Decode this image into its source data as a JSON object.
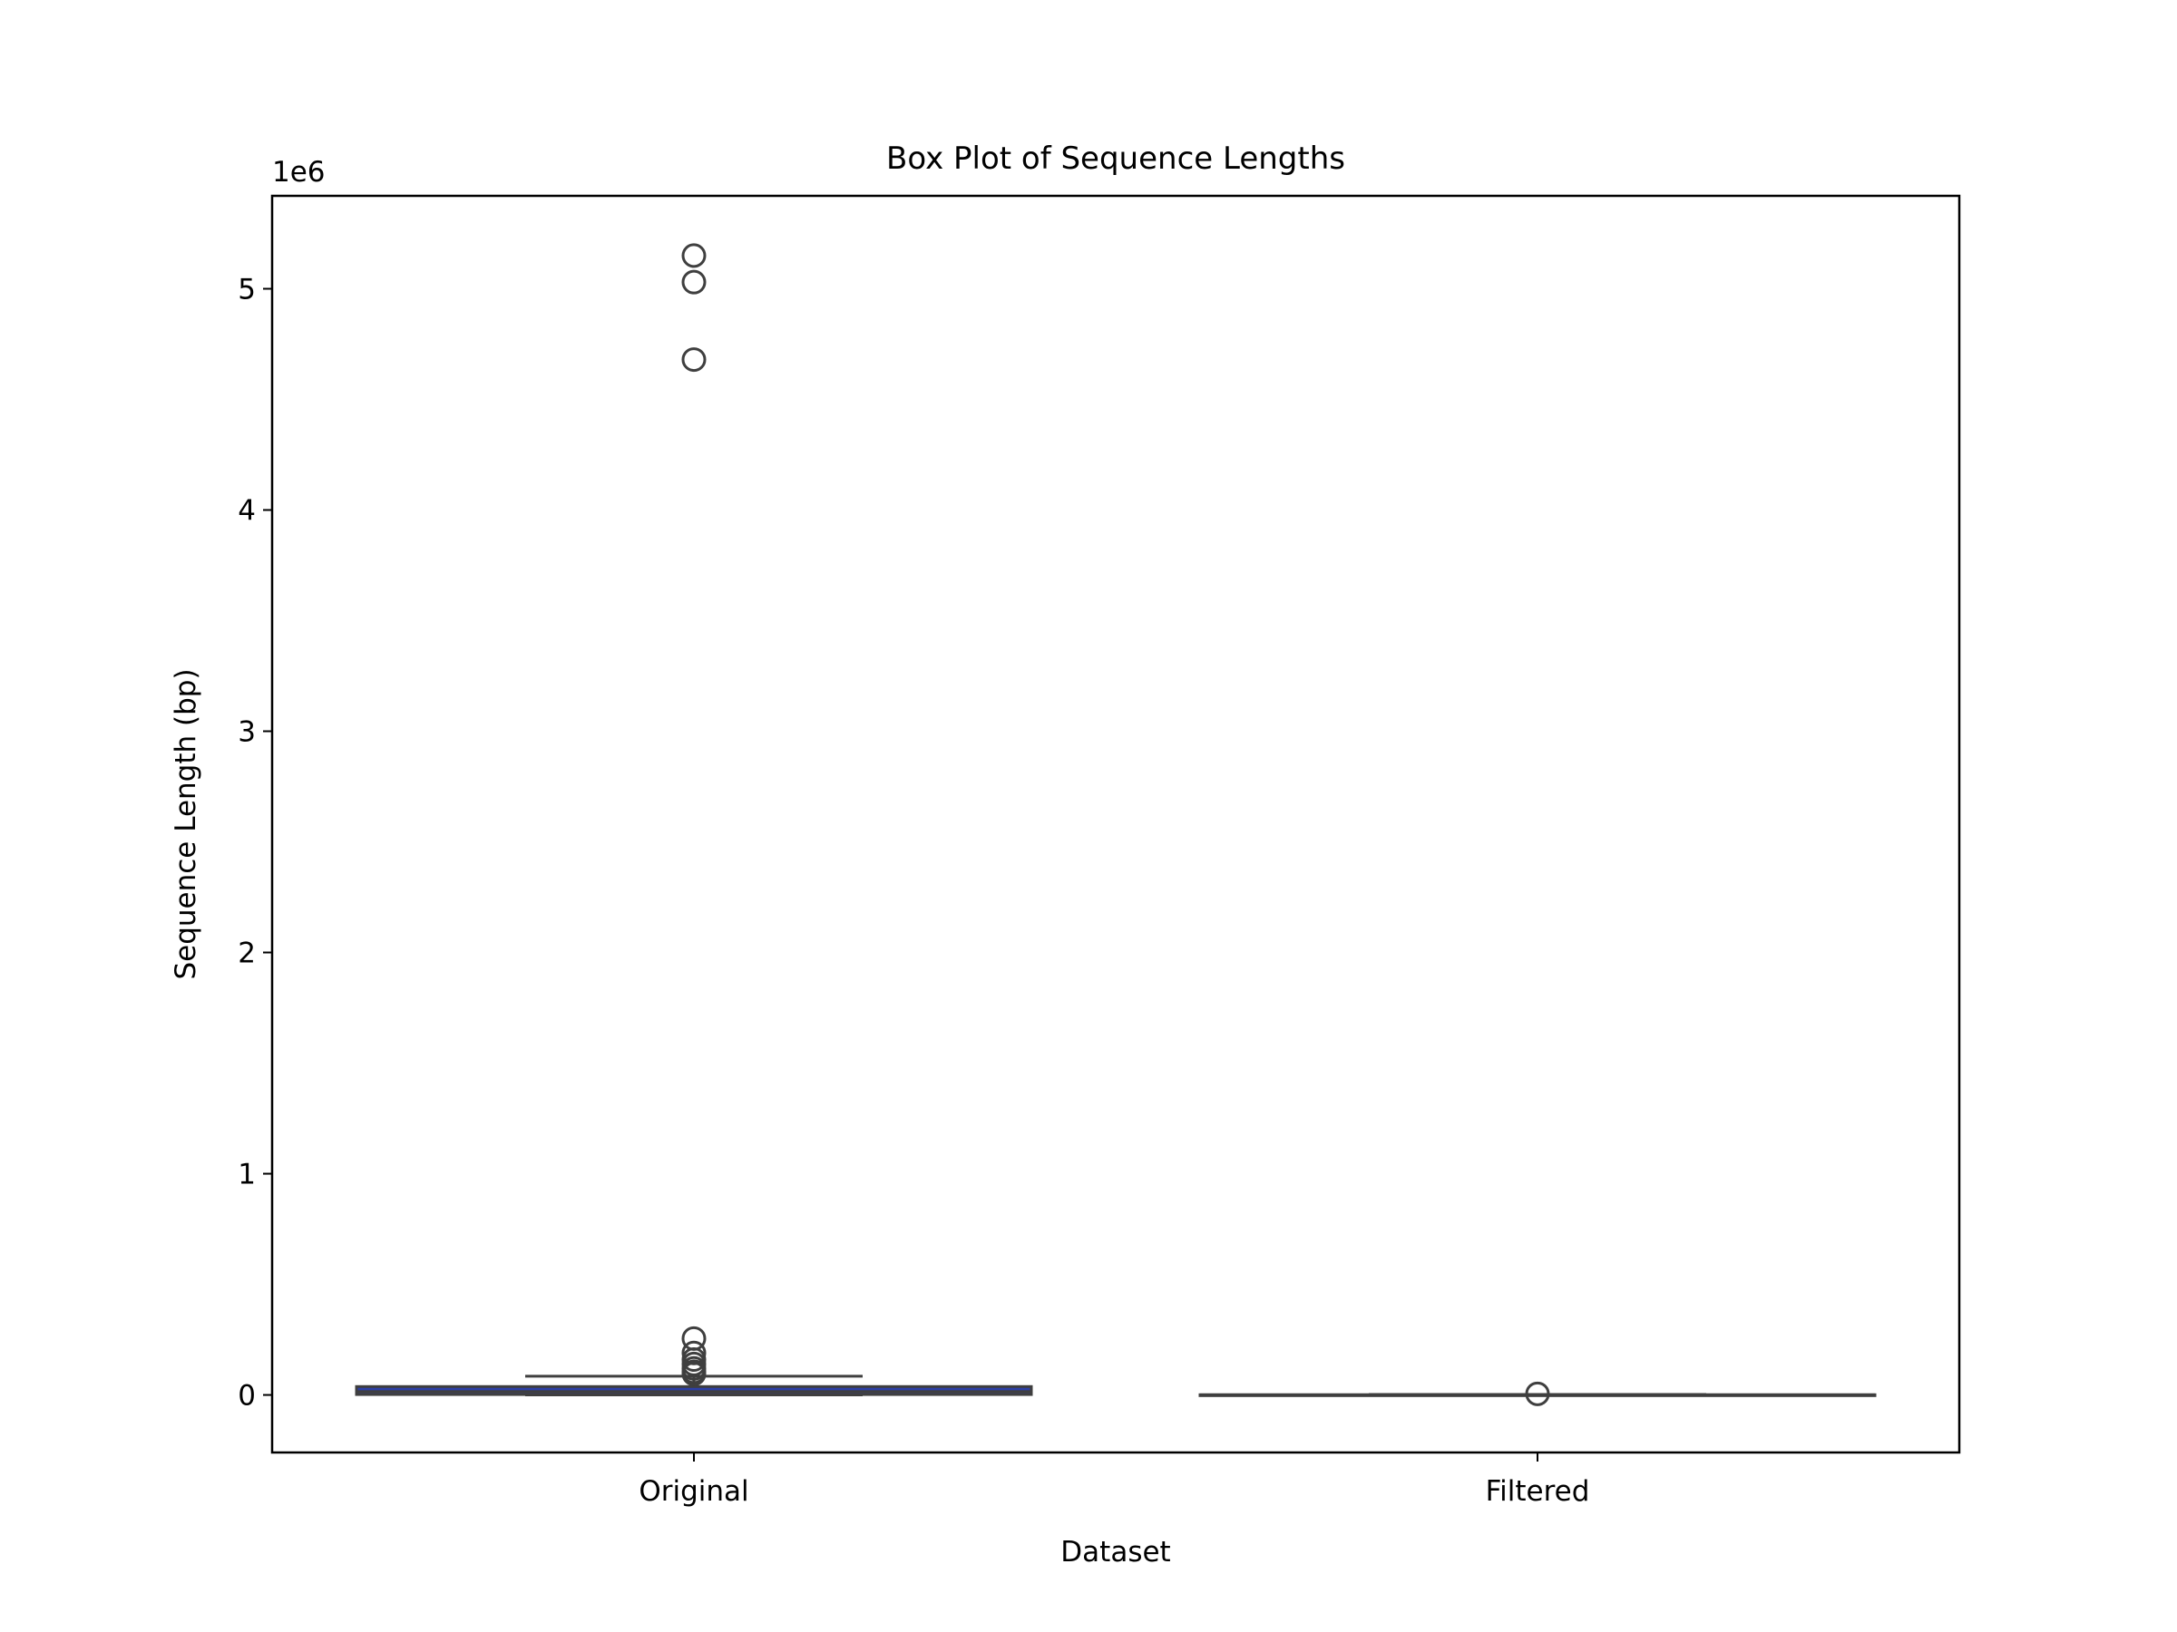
{
  "chart_data": {
    "type": "box",
    "title": "Box Plot of Sequence Lengths",
    "xlabel": "Dataset",
    "ylabel": "Sequence Length (bp)",
    "y_offset_label": "1e6",
    "y_multiplier": 1000000,
    "ylim": [
      -260000,
      5420000
    ],
    "yticks": [
      0,
      1000000,
      2000000,
      3000000,
      4000000,
      5000000
    ],
    "ytick_labels": [
      "0",
      "1",
      "2",
      "3",
      "4",
      "5"
    ],
    "categories": [
      "Original",
      "Filtered"
    ],
    "grid": false,
    "boxes": [
      {
        "name": "Original",
        "color": "#2c3fa8",
        "q1": 2000,
        "median": 15000,
        "q3": 38000,
        "whisker_low": 0,
        "whisker_high": 85000,
        "outliers": [
          5150000,
          5030000,
          4680000,
          255000,
          190000,
          160000,
          140000,
          120000,
          105000,
          95000
        ]
      },
      {
        "name": "Filtered",
        "color": "#2c3fa8",
        "q1": 300,
        "median": 600,
        "q3": 1000,
        "whisker_low": 0,
        "whisker_high": 2500,
        "outliers": [
          5000
        ]
      }
    ]
  }
}
